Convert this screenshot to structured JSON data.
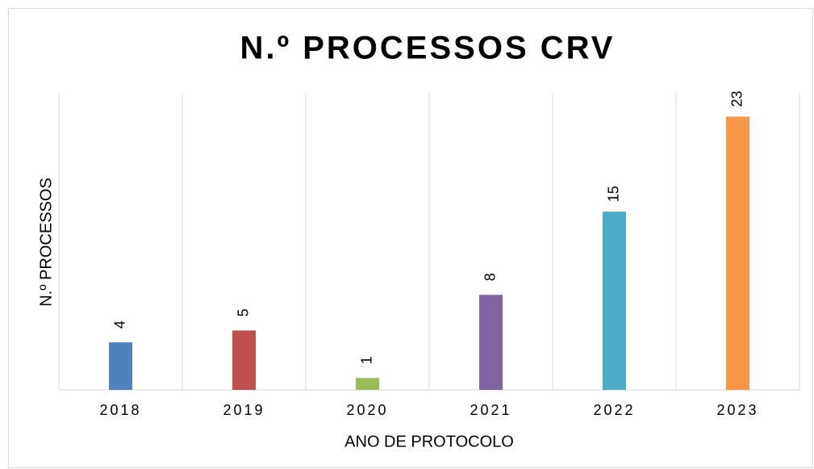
{
  "chart_data": {
    "type": "bar",
    "title": "N.º PROCESSOS CRV",
    "x_label": "ANO DE PROTOCOLO",
    "y_label": "N.º PROCESSOS",
    "categories": [
      "2018",
      "2019",
      "2020",
      "2021",
      "2022",
      "2023"
    ],
    "values": [
      4,
      5,
      1,
      8,
      15,
      23
    ],
    "colors": [
      "#4f81bd",
      "#c0504d",
      "#9bbb59",
      "#8064a2",
      "#4bacc6",
      "#f79646"
    ],
    "ylim": [
      0,
      25
    ],
    "grid": true
  }
}
